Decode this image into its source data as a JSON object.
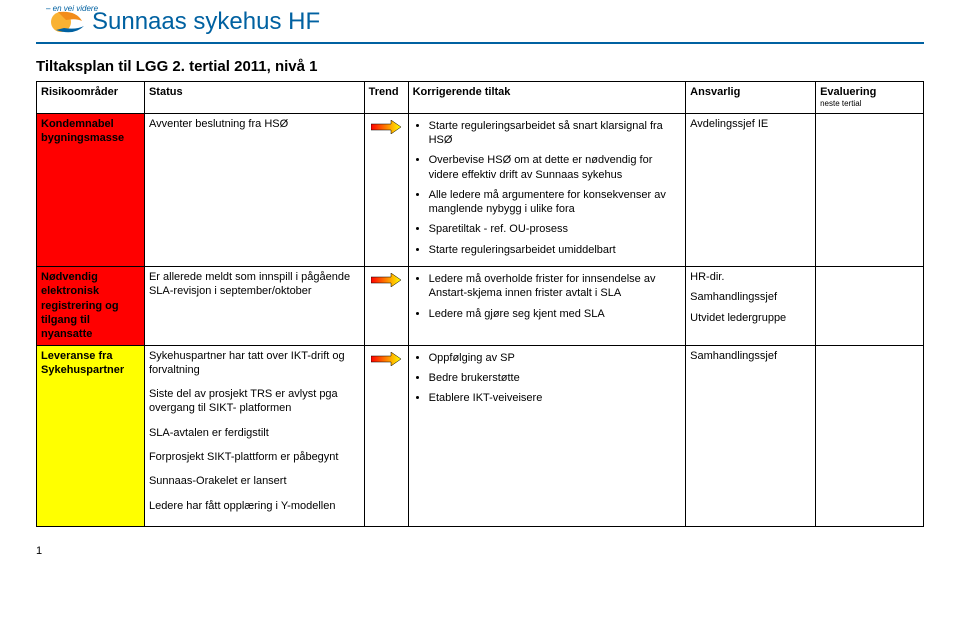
{
  "header": {
    "tagline": "– en vei videre",
    "brand_main": "Sunnaas sykehus",
    "brand_suffix": "HF"
  },
  "title": "Tiltaksplan til LGG 2. tertial 2011, nivå 1",
  "columns": {
    "risk": "Risikoområder",
    "status": "Status",
    "trend": "Trend",
    "action": "Korrigerende tiltak",
    "responsible": "Ansvarlig",
    "evaluation": "Evaluering",
    "evaluation_sub": "neste tertial"
  },
  "rows": [
    {
      "risk_label": "Kondemnabel bygningsmasse",
      "risk_bg": "#ff0000",
      "status": "Avventer beslutning fra HSØ",
      "trend_gradient": [
        "#ff0000",
        "#ffff00"
      ],
      "actions": [
        "Starte reguleringsarbeidet så snart klarsignal fra HSØ",
        "Overbevise HSØ om at dette er nødvendig for videre effektiv drift av Sunnaas sykehus",
        "Alle ledere må argumentere for konsekvenser av manglende nybygg i ulike fora",
        "Sparetiltak - ref. OU-prosess",
        "Starte reguleringsarbeidet umiddelbart"
      ],
      "responsible": "Avdelingssjef IE",
      "evaluation": ""
    },
    {
      "risk_label": "Nødvendig elektronisk registrering og tilgang til nyansatte",
      "risk_bg": "#ff0000",
      "status": "Er allerede meldt som innspill i pågående SLA-revisjon i september/oktober",
      "trend_gradient": [
        "#ff0000",
        "#ffff00"
      ],
      "actions": [
        "Ledere må overholde frister for innsendelse av Anstart-skjema innen frister avtalt i SLA",
        "Ledere må gjøre seg kjent med SLA"
      ],
      "responsible": "HR-dir.\nSamhandlingssjef\nUtvidet ledergruppe",
      "evaluation": ""
    },
    {
      "risk_label": "Leveranse fra Sykehuspartner",
      "risk_bg": "#ffff00",
      "status_lines": [
        "Sykehuspartner har tatt over IKT-drift og forvaltning",
        "Siste del av prosjekt TRS er avlyst pga overgang til SIKT- platformen",
        "SLA-avtalen er ferdigstilt",
        "Forprosjekt SIKT-plattform er påbegynt",
        "Sunnaas-Orakelet er lansert",
        "Ledere har fått opplæring i Y-modellen"
      ],
      "trend_gradient": [
        "#ff0000",
        "#ffff00"
      ],
      "actions": [
        "Oppfølging av SP",
        "Bedre brukerstøtte",
        "Etablere IKT-veiveisere"
      ],
      "responsible": "Samhandlingssjef",
      "evaluation": ""
    }
  ],
  "page_number": "1",
  "style": {
    "brand_color": "#0061a1",
    "border_color": "#000000",
    "bg_color": "#ffffff",
    "arrow_fill_start": "#ff0000",
    "arrow_fill_end": "#ffff00",
    "logo_colors": {
      "yellow": "#f9b233",
      "orange": "#f28c1a",
      "blue": "#0061a1"
    }
  }
}
